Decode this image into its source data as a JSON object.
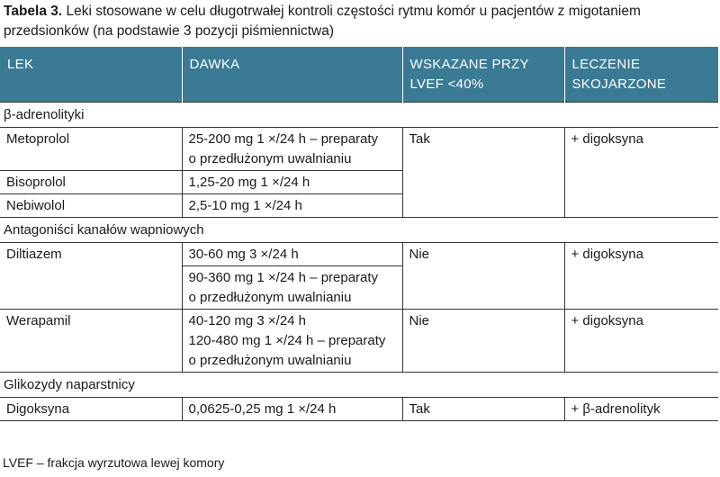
{
  "caption": {
    "label": "Tabela 3.",
    "text": " Leki stosowane w celu długotrwałej kontroli częstości rytmu komór u pacjentów z migotaniem przedsionków (na podstawie 3 pozycji piśmiennictwa)"
  },
  "header": {
    "col1": "LEK",
    "col2": "DAWKA",
    "col3_line1": "WSKAZANE PRZY",
    "col3_line2": "LVEF <40%",
    "col4_line1": "LECZENIE",
    "col4_line2": "SKOJARZONE"
  },
  "groups": {
    "beta": "β-adrenolityki",
    "calcium": "Antagoniści kanałów wapniowych",
    "glyco": "Glikozydy naparstnicy"
  },
  "rows": {
    "metoprolol": {
      "drug": "Metoprolol",
      "dose_line1": "25-200 mg 1 ×/24 h – preparaty",
      "dose_line2": "o przedłużonym uwalnianiu",
      "lvef": "Tak",
      "combo": "+ digoksyna"
    },
    "bisoprolol": {
      "drug": "Bisoprolol",
      "dose": "1,25-20 mg 1 ×/24 h"
    },
    "nebiwolol": {
      "drug": "Nebiwolol",
      "dose": "2,5-10 mg 1 ×/24 h"
    },
    "diltiazem": {
      "drug": "Diltiazem",
      "dose1": "30-60 mg 3 ×/24 h",
      "dose2_line1": "90-360 mg 1 ×/24 h – preparaty",
      "dose2_line2": "o przedłużonym uwalnianiu",
      "lvef": "Nie",
      "combo": "+ digoksyna"
    },
    "werapamil": {
      "drug": "Werapamil",
      "dose_line1": "40-120 mg 3 ×/24 h",
      "dose_line2": "120-480 mg 1 ×/24 h – preparaty",
      "dose_line3": "o przedłużonym uwalnianiu",
      "lvef": "Nie",
      "combo": "+ digoksyna"
    },
    "digoksyna": {
      "drug": "Digoksyna",
      "dose": "0,0625-0,25 mg 1 ×/24 h",
      "lvef": "Tak",
      "combo": "+ β-adrenolityk"
    }
  },
  "footnote": "LVEF – frakcja wyrzutowa lewej komory"
}
